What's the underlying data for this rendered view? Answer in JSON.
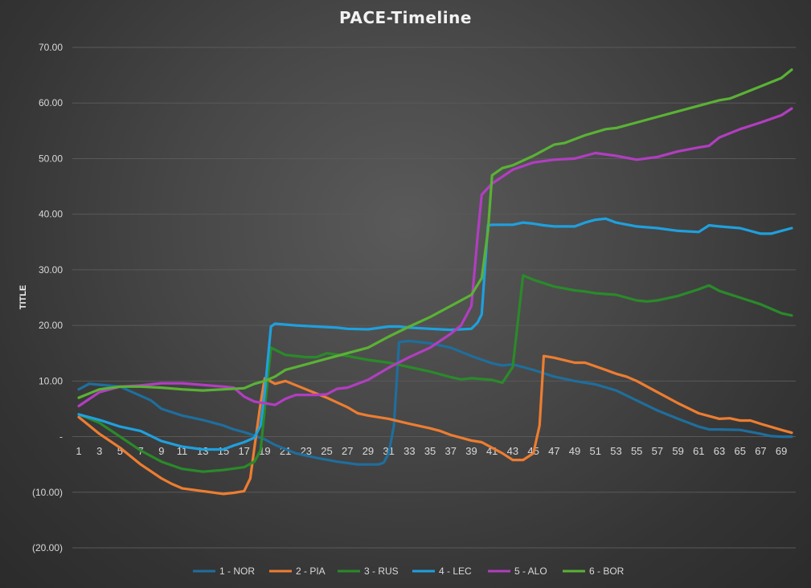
{
  "chart_data": {
    "type": "line",
    "title": "PACE-Timeline",
    "xlabel": "",
    "ylabel": "TITLE",
    "ylim": [
      -20,
      70
    ],
    "xlim": [
      1,
      70
    ],
    "y_ticks": [
      {
        "value": 70,
        "label": "70.00"
      },
      {
        "value": 60,
        "label": "60.00"
      },
      {
        "value": 50,
        "label": "50.00"
      },
      {
        "value": 40,
        "label": "40.00"
      },
      {
        "value": 30,
        "label": "30.00"
      },
      {
        "value": 20,
        "label": "20.00"
      },
      {
        "value": 10,
        "label": "10.00"
      },
      {
        "value": 0,
        "label": "-"
      },
      {
        "value": -10,
        "label": "(10.00)"
      },
      {
        "value": -20,
        "label": "(20.00)"
      }
    ],
    "x_ticks": [
      1,
      3,
      5,
      7,
      9,
      11,
      13,
      15,
      17,
      19,
      21,
      23,
      25,
      27,
      29,
      31,
      33,
      35,
      37,
      39,
      41,
      43,
      45,
      47,
      49,
      51,
      53,
      55,
      57,
      59,
      61,
      63,
      65,
      67,
      69
    ],
    "grid": true,
    "legend_position": "bottom",
    "series": [
      {
        "name": "1 - NOR",
        "color": "#1f6e9c",
        "points": [
          [
            1,
            8.5
          ],
          [
            2,
            9.5
          ],
          [
            5,
            9
          ],
          [
            8,
            6.5
          ],
          [
            9,
            5
          ],
          [
            11,
            3.8
          ],
          [
            13,
            3
          ],
          [
            15,
            2
          ],
          [
            16,
            1.3
          ],
          [
            17,
            0.8
          ],
          [
            18,
            0.2
          ],
          [
            19,
            -0.5
          ],
          [
            20,
            -1.5
          ],
          [
            22,
            -3
          ],
          [
            24,
            -3.8
          ],
          [
            26,
            -4.5
          ],
          [
            28,
            -5
          ],
          [
            30,
            -5
          ],
          [
            30.5,
            -4.7
          ],
          [
            31,
            -3
          ],
          [
            31.5,
            2
          ],
          [
            32,
            17
          ],
          [
            33,
            17.2
          ],
          [
            35,
            16.8
          ],
          [
            37,
            16
          ],
          [
            39,
            14.5
          ],
          [
            41,
            13.2
          ],
          [
            42,
            12.8
          ],
          [
            43,
            13
          ],
          [
            44,
            12.5
          ],
          [
            45,
            12
          ],
          [
            47,
            10.8
          ],
          [
            49,
            10
          ],
          [
            51,
            9.4
          ],
          [
            53,
            8.3
          ],
          [
            55,
            6.5
          ],
          [
            57,
            4.7
          ],
          [
            59,
            3.2
          ],
          [
            61,
            1.8
          ],
          [
            62,
            1.3
          ],
          [
            63,
            1.3
          ],
          [
            65,
            1.2
          ],
          [
            67,
            0.5
          ],
          [
            68,
            0.1
          ],
          [
            69,
            0
          ],
          [
            70,
            0
          ]
        ]
      },
      {
        "name": "2 - PIA",
        "color": "#ed7d31",
        "points": [
          [
            1,
            3.5
          ],
          [
            3,
            0.5
          ],
          [
            5,
            -2
          ],
          [
            7,
            -5
          ],
          [
            9,
            -7.5
          ],
          [
            10,
            -8.5
          ],
          [
            11,
            -9.3
          ],
          [
            13,
            -9.8
          ],
          [
            15,
            -10.3
          ],
          [
            16,
            -10.1
          ],
          [
            17,
            -9.8
          ],
          [
            17.6,
            -7.5
          ],
          [
            18,
            -2
          ],
          [
            18.6,
            6
          ],
          [
            19,
            10.5
          ],
          [
            20,
            9.5
          ],
          [
            21,
            10
          ],
          [
            23,
            8.5
          ],
          [
            25,
            7
          ],
          [
            27,
            5.3
          ],
          [
            28,
            4.2
          ],
          [
            29,
            3.8
          ],
          [
            31,
            3.2
          ],
          [
            33,
            2.3
          ],
          [
            35,
            1.5
          ],
          [
            36,
            1
          ],
          [
            37,
            0.3
          ],
          [
            39,
            -0.7
          ],
          [
            40,
            -1
          ],
          [
            42,
            -3
          ],
          [
            43,
            -4.2
          ],
          [
            44,
            -4.2
          ],
          [
            45,
            -3
          ],
          [
            45.6,
            2
          ],
          [
            46,
            14.5
          ],
          [
            47,
            14.2
          ],
          [
            49,
            13.3
          ],
          [
            50,
            13.3
          ],
          [
            52,
            12
          ],
          [
            53,
            11.3
          ],
          [
            54,
            10.8
          ],
          [
            55,
            10
          ],
          [
            57,
            8
          ],
          [
            59,
            6
          ],
          [
            61,
            4.2
          ],
          [
            63,
            3.2
          ],
          [
            64,
            3.3
          ],
          [
            65,
            2.9
          ],
          [
            66,
            2.9
          ],
          [
            67,
            2.3
          ],
          [
            69,
            1.2
          ],
          [
            70,
            0.7
          ]
        ]
      },
      {
        "name": "3 - RUS",
        "color": "#2a8a2a",
        "points": [
          [
            1,
            4
          ],
          [
            3,
            2.5
          ],
          [
            5,
            0
          ],
          [
            7,
            -2.5
          ],
          [
            9,
            -4.5
          ],
          [
            11,
            -5.8
          ],
          [
            13,
            -6.3
          ],
          [
            15,
            -6
          ],
          [
            17,
            -5.5
          ],
          [
            18,
            -4.5
          ],
          [
            18.6,
            -2.5
          ],
          [
            19,
            5
          ],
          [
            19.6,
            16
          ],
          [
            21,
            14.7
          ],
          [
            23,
            14.3
          ],
          [
            24,
            14.3
          ],
          [
            25,
            15
          ],
          [
            27,
            14.5
          ],
          [
            29,
            13.8
          ],
          [
            31,
            13.3
          ],
          [
            33,
            12.5
          ],
          [
            35,
            11.7
          ],
          [
            37,
            10.7
          ],
          [
            38,
            10.3
          ],
          [
            39,
            10.5
          ],
          [
            41,
            10.2
          ],
          [
            42,
            9.7
          ],
          [
            43,
            12.5
          ],
          [
            44,
            29
          ],
          [
            45,
            28.2
          ],
          [
            47,
            27
          ],
          [
            49,
            26.3
          ],
          [
            50,
            26.1
          ],
          [
            51,
            25.8
          ],
          [
            53,
            25.5
          ],
          [
            55,
            24.5
          ],
          [
            56,
            24.3
          ],
          [
            57,
            24.5
          ],
          [
            59,
            25.3
          ],
          [
            61,
            26.5
          ],
          [
            62,
            27.2
          ],
          [
            63,
            26.2
          ],
          [
            65,
            25
          ],
          [
            67,
            23.8
          ],
          [
            69,
            22.2
          ],
          [
            70,
            21.8
          ]
        ]
      },
      {
        "name": "4 - LEC",
        "color": "#1fa0dd",
        "points": [
          [
            1,
            4
          ],
          [
            3,
            3
          ],
          [
            5,
            1.8
          ],
          [
            7,
            1
          ],
          [
            9,
            -0.8
          ],
          [
            11,
            -1.8
          ],
          [
            13,
            -2.3
          ],
          [
            15,
            -2.3
          ],
          [
            16,
            -1.6
          ],
          [
            17,
            -1
          ],
          [
            18,
            -0.2
          ],
          [
            18.6,
            2
          ],
          [
            19,
            8
          ],
          [
            19.6,
            19.8
          ],
          [
            20,
            20.3
          ],
          [
            22,
            20
          ],
          [
            24,
            19.8
          ],
          [
            26,
            19.6
          ],
          [
            27,
            19.4
          ],
          [
            29,
            19.3
          ],
          [
            31,
            19.8
          ],
          [
            32,
            19.8
          ],
          [
            33,
            19.6
          ],
          [
            35,
            19.4
          ],
          [
            36,
            19.3
          ],
          [
            37,
            19.2
          ],
          [
            39,
            19.4
          ],
          [
            39.6,
            20.5
          ],
          [
            40,
            22
          ],
          [
            40.6,
            38
          ],
          [
            41,
            38.1
          ],
          [
            43,
            38.1
          ],
          [
            44,
            38.5
          ],
          [
            45,
            38.3
          ],
          [
            46,
            38
          ],
          [
            47,
            37.8
          ],
          [
            49,
            37.8
          ],
          [
            50,
            38.5
          ],
          [
            51,
            39
          ],
          [
            52,
            39.2
          ],
          [
            53,
            38.5
          ],
          [
            55,
            37.8
          ],
          [
            57,
            37.5
          ],
          [
            59,
            37
          ],
          [
            61,
            36.8
          ],
          [
            62,
            38
          ],
          [
            63,
            37.8
          ],
          [
            65,
            37.5
          ],
          [
            67,
            36.5
          ],
          [
            68,
            36.5
          ],
          [
            69,
            37
          ],
          [
            70,
            37.5
          ]
        ]
      },
      {
        "name": "5 - ALO",
        "color": "#b13ec0",
        "points": [
          [
            1,
            5.5
          ],
          [
            3,
            8
          ],
          [
            5,
            9
          ],
          [
            7,
            9.2
          ],
          [
            9,
            9.6
          ],
          [
            11,
            9.6
          ],
          [
            13,
            9.3
          ],
          [
            15,
            9
          ],
          [
            16,
            8.8
          ],
          [
            17,
            7.2
          ],
          [
            18,
            6.3
          ],
          [
            19,
            6
          ],
          [
            20,
            5.7
          ],
          [
            21,
            6.8
          ],
          [
            22,
            7.5
          ],
          [
            24,
            7.5
          ],
          [
            25,
            7.6
          ],
          [
            26,
            8.6
          ],
          [
            27,
            8.8
          ],
          [
            29,
            10.2
          ],
          [
            31,
            12.4
          ],
          [
            33,
            14.3
          ],
          [
            35,
            16
          ],
          [
            37,
            18.5
          ],
          [
            38,
            20
          ],
          [
            39,
            23.5
          ],
          [
            39.6,
            36
          ],
          [
            40,
            43.5
          ],
          [
            41,
            45.5
          ],
          [
            43,
            48
          ],
          [
            45,
            49.3
          ],
          [
            47,
            49.8
          ],
          [
            49,
            50
          ],
          [
            51,
            51
          ],
          [
            53,
            50.5
          ],
          [
            55,
            49.8
          ],
          [
            57,
            50.3
          ],
          [
            59,
            51.3
          ],
          [
            61,
            52
          ],
          [
            62,
            52.3
          ],
          [
            63,
            53.8
          ],
          [
            65,
            55.3
          ],
          [
            67,
            56.5
          ],
          [
            69,
            57.8
          ],
          [
            70,
            59
          ]
        ]
      },
      {
        "name": "6 - BOR",
        "color": "#5ab235",
        "points": [
          [
            1,
            7
          ],
          [
            3,
            8.5
          ],
          [
            5,
            9
          ],
          [
            6,
            9
          ],
          [
            7,
            9
          ],
          [
            9,
            8.8
          ],
          [
            11,
            8.5
          ],
          [
            13,
            8.3
          ],
          [
            15,
            8.5
          ],
          [
            17,
            8.7
          ],
          [
            18,
            9.5
          ],
          [
            19,
            10
          ],
          [
            20,
            10.8
          ],
          [
            21,
            12
          ],
          [
            23,
            13
          ],
          [
            25,
            14
          ],
          [
            27,
            15
          ],
          [
            29,
            16
          ],
          [
            31,
            18
          ],
          [
            33,
            19.8
          ],
          [
            35,
            21.5
          ],
          [
            37,
            23.5
          ],
          [
            39,
            25.5
          ],
          [
            40,
            28.5
          ],
          [
            40.6,
            37
          ],
          [
            41,
            47
          ],
          [
            42,
            48.3
          ],
          [
            43,
            48.8
          ],
          [
            45,
            50.5
          ],
          [
            47,
            52.5
          ],
          [
            48,
            52.8
          ],
          [
            50,
            54.2
          ],
          [
            52,
            55.3
          ],
          [
            53,
            55.5
          ],
          [
            55,
            56.5
          ],
          [
            57,
            57.5
          ],
          [
            59,
            58.5
          ],
          [
            61,
            59.5
          ],
          [
            63,
            60.5
          ],
          [
            64,
            60.8
          ],
          [
            65,
            61.5
          ],
          [
            67,
            63
          ],
          [
            69,
            64.5
          ],
          [
            70,
            66
          ]
        ]
      }
    ]
  }
}
